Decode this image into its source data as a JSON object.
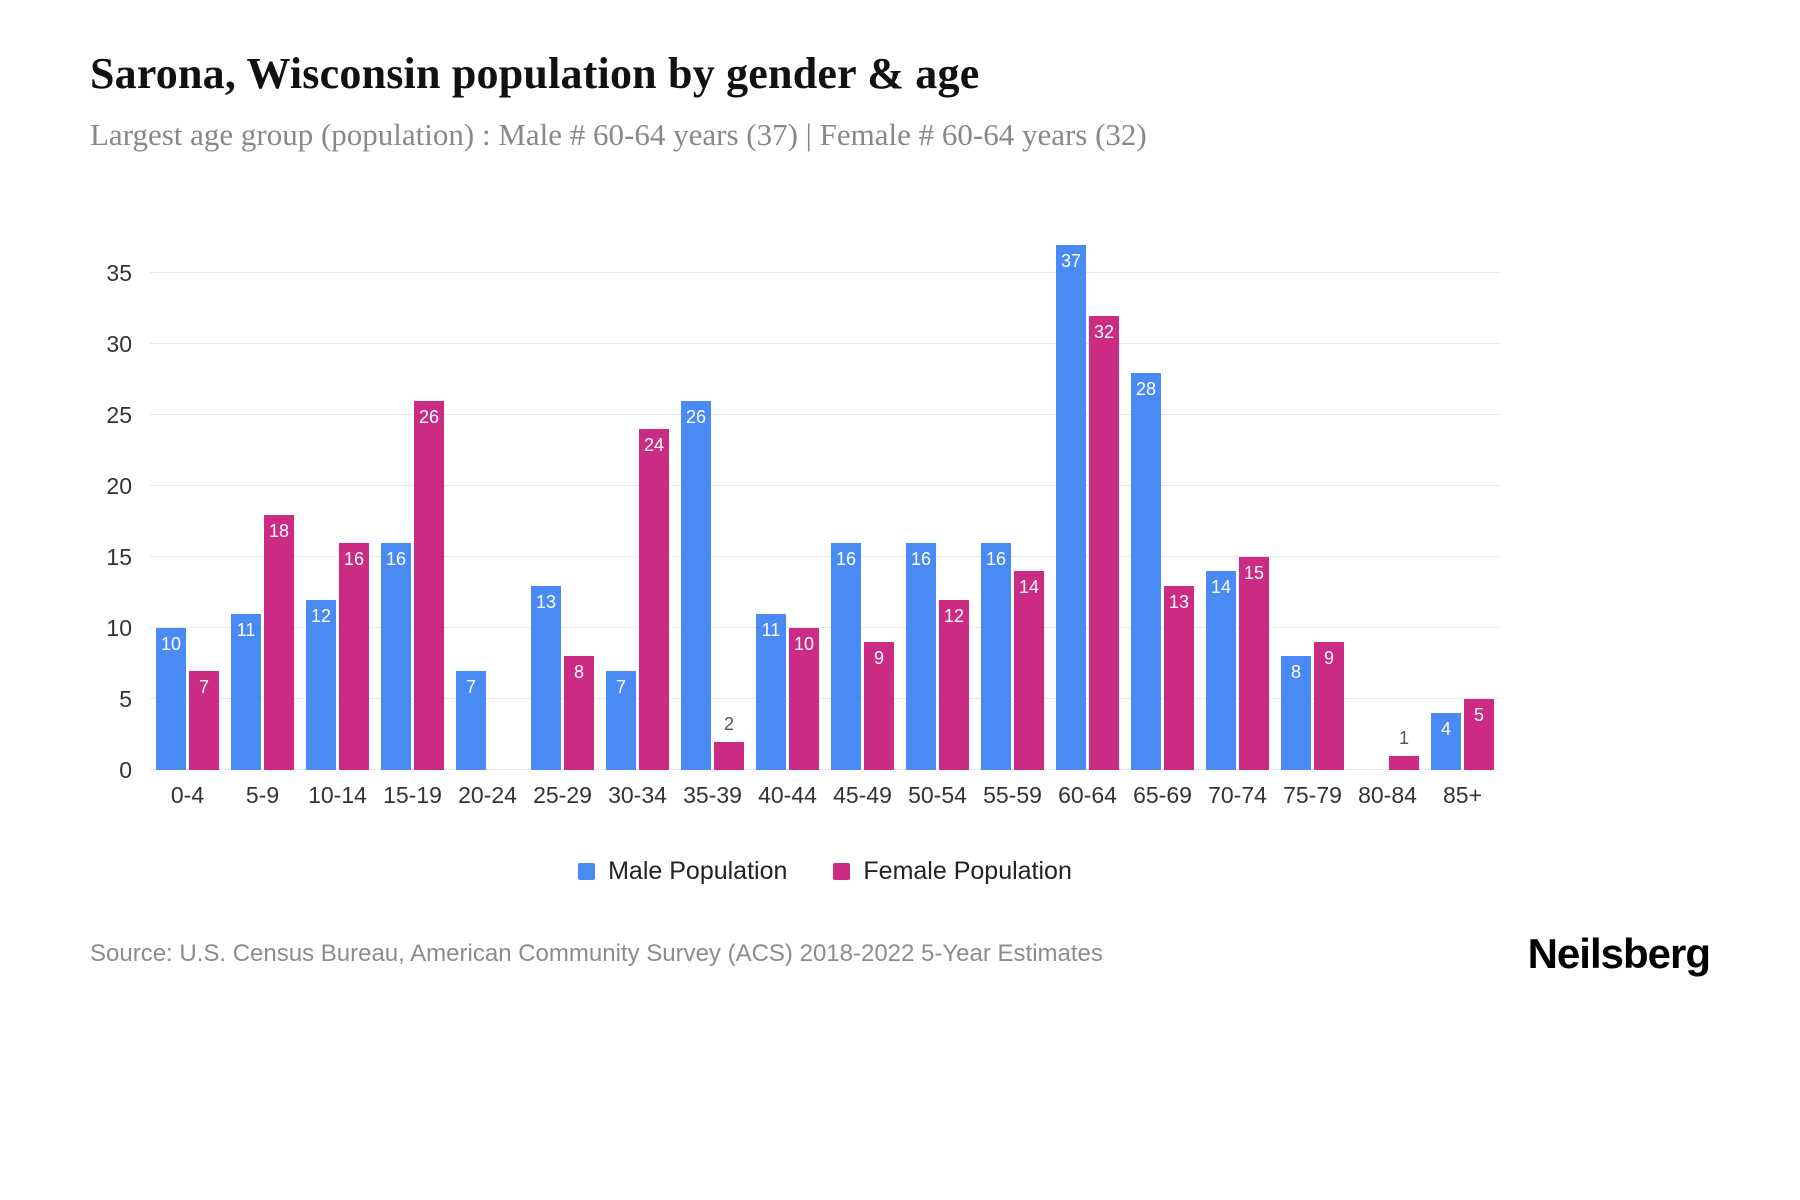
{
  "chart_data": {
    "type": "bar",
    "title": "Sarona, Wisconsin population by gender & age",
    "subtitle": "Largest age group (population) : Male # 60-64 years (37) | Female # 60-64 years (32)",
    "categories": [
      "0-4",
      "5-9",
      "10-14",
      "15-19",
      "20-24",
      "25-29",
      "30-34",
      "35-39",
      "40-44",
      "45-49",
      "50-54",
      "55-59",
      "60-64",
      "65-69",
      "70-74",
      "75-79",
      "80-84",
      "85+"
    ],
    "series": [
      {
        "name": "Male Population",
        "color": "#4a8af4",
        "values": [
          10,
          11,
          12,
          16,
          7,
          13,
          7,
          26,
          11,
          16,
          16,
          16,
          37,
          28,
          14,
          8,
          0,
          4
        ]
      },
      {
        "name": "Female Population",
        "color": "#cb2b83",
        "values": [
          7,
          18,
          16,
          26,
          0,
          8,
          24,
          2,
          10,
          9,
          12,
          14,
          32,
          13,
          15,
          9,
          1,
          5
        ]
      }
    ],
    "y_ticks": [
      0,
      5,
      10,
      15,
      20,
      25,
      30,
      35
    ],
    "ylim": [
      0,
      37
    ],
    "grid": true,
    "legend_position": "bottom"
  },
  "footer": {
    "source": "Source: U.S. Census Bureau, American Community Survey (ACS) 2018-2022 5-Year Estimates",
    "brand": "Neilsberg"
  }
}
